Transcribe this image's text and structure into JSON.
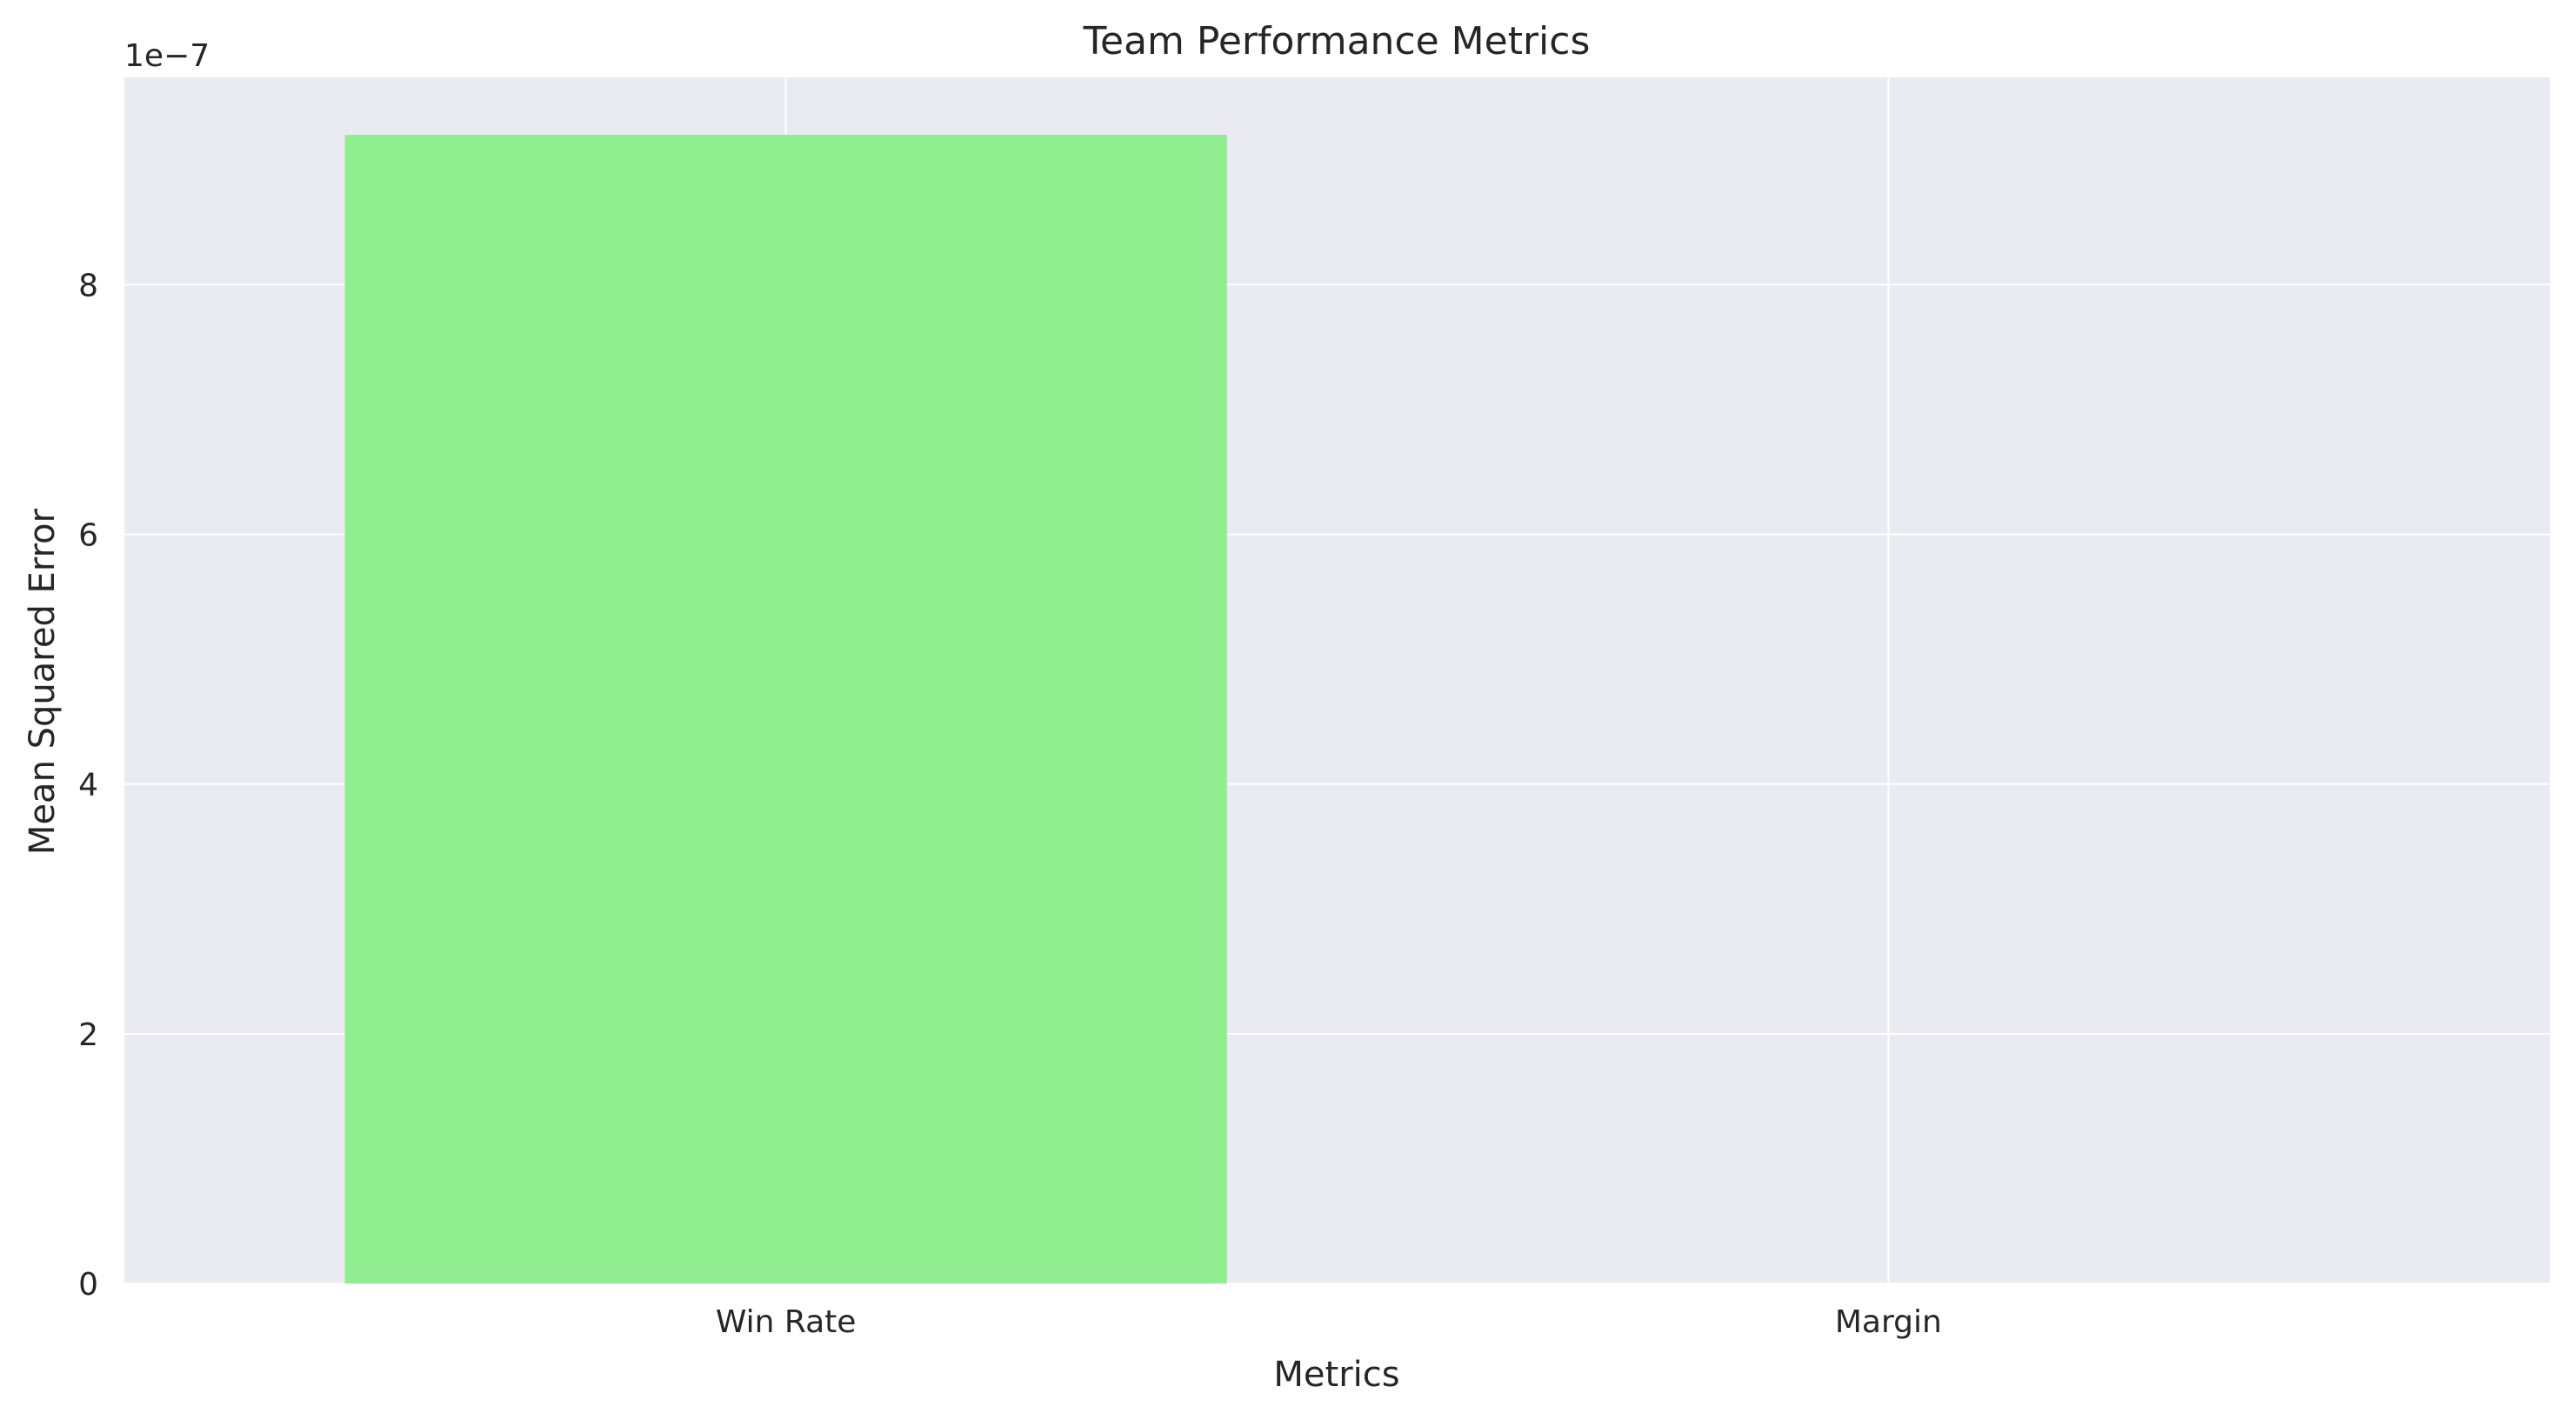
{
  "chart_data": {
    "type": "bar",
    "title": "Team Performance Metrics",
    "xlabel": "Metrics",
    "ylabel": "Mean Squared Error",
    "offset_text": "1e−7",
    "categories": [
      "Win Rate",
      "Margin"
    ],
    "values": [
      9.2e-07,
      0.0
    ],
    "ylim": [
      0,
      9.66e-07
    ],
    "yticks": [
      0,
      2e-07,
      4e-07,
      6e-07,
      8e-07
    ],
    "ytick_labels": [
      "0",
      "2",
      "4",
      "6",
      "8"
    ],
    "grid": true,
    "legend": "none",
    "colors": {
      "bar": "#90EE90",
      "plot_background": "#EAEAF2",
      "grid": "#FFFFFF",
      "text": "#262626"
    }
  }
}
